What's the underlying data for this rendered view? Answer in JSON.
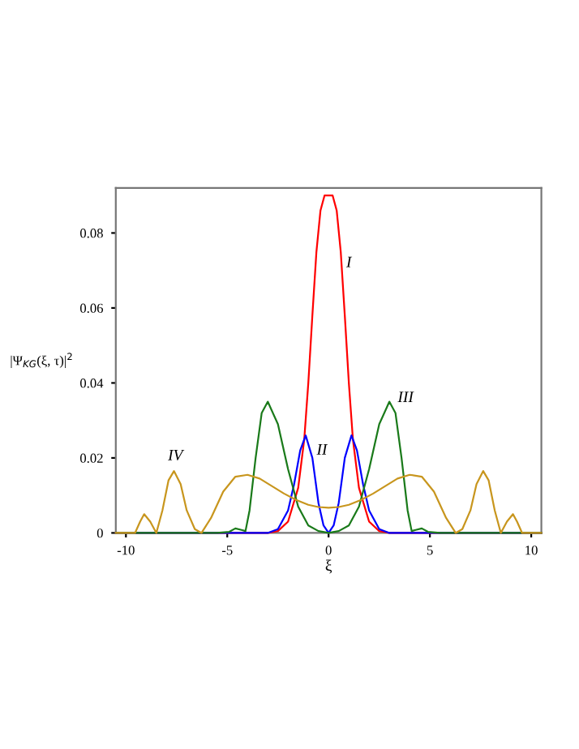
{
  "chart_data": {
    "type": "line",
    "xlabel": "ξ",
    "ylabel": "|Ψ$_{KG}$(ξ, τ)|$^{2}$",
    "xlim": [
      -10.5,
      10.5
    ],
    "ylim": [
      0,
      0.092
    ],
    "xticks": [
      -10,
      -5,
      0,
      5,
      10
    ],
    "yticks": [
      0,
      0.02,
      0.04,
      0.06,
      0.08
    ],
    "grid": false,
    "legend": false,
    "marker": "none",
    "line_style": "solid",
    "series": [
      {
        "color": "#ff0000",
        "x": [
          -10.5,
          -3,
          -2.5,
          -2,
          -1.5,
          -1.2,
          -1,
          -0.8,
          -0.6,
          -0.4,
          -0.2,
          0,
          0.2,
          0.4,
          0.6,
          0.8,
          1,
          1.2,
          1.5,
          2,
          2.5,
          3,
          10.5
        ],
        "values": [
          0,
          0,
          0.0005,
          0.003,
          0.012,
          0.025,
          0.04,
          0.058,
          0.075,
          0.086,
          0.09,
          0.09,
          0.09,
          0.086,
          0.075,
          0.058,
          0.04,
          0.025,
          0.012,
          0.003,
          0.0005,
          0,
          0
        ]
      },
      {
        "color": "#0000ff",
        "x": [
          -10.5,
          -3,
          -2.5,
          -2,
          -1.7,
          -1.4,
          -1.13,
          -0.8,
          -0.5,
          -0.25,
          0,
          0.25,
          0.5,
          0.8,
          1.13,
          1.4,
          1.7,
          2,
          2.5,
          3,
          10.5
        ],
        "values": [
          0,
          0,
          0.001,
          0.006,
          0.013,
          0.022,
          0.026,
          0.02,
          0.008,
          0.002,
          0,
          0.002,
          0.008,
          0.02,
          0.026,
          0.022,
          0.013,
          0.006,
          0.001,
          0,
          0
        ]
      },
      {
        "color": "#1a7a1a",
        "x": [
          -10.5,
          -5.5,
          -4.9,
          -4.6,
          -4.3,
          -4.1,
          -3.9,
          -3.6,
          -3.3,
          -3,
          -2.5,
          -2,
          -1.5,
          -1,
          -0.5,
          0,
          0.5,
          1,
          1.5,
          2,
          2.5,
          3,
          3.3,
          3.6,
          3.9,
          4.1,
          4.3,
          4.6,
          4.9,
          5.5,
          10.5
        ],
        "values": [
          0,
          0,
          0.0003,
          0.0012,
          0.0008,
          0.0005,
          0.006,
          0.02,
          0.032,
          0.035,
          0.029,
          0.017,
          0.007,
          0.002,
          0.0005,
          0,
          0.0005,
          0.002,
          0.007,
          0.017,
          0.029,
          0.035,
          0.032,
          0.02,
          0.006,
          0.0005,
          0.0008,
          0.0012,
          0.0003,
          0,
          0
        ]
      },
      {
        "color": "#c8961e",
        "x": [
          -10.5,
          -9.8,
          -9.55,
          -9.3,
          -9.1,
          -8.8,
          -8.5,
          -8.2,
          -7.9,
          -7.63,
          -7.3,
          -7,
          -6.6,
          -6.27,
          -5.8,
          -5.2,
          -4.6,
          -4,
          -3.4,
          -2.8,
          -2.2,
          -1.6,
          -1,
          -0.5,
          0,
          0.5,
          1,
          1.6,
          2.2,
          2.8,
          3.4,
          4,
          4.6,
          5.2,
          5.8,
          6.27,
          6.6,
          7,
          7.3,
          7.63,
          7.9,
          8.2,
          8.5,
          8.8,
          9.1,
          9.3,
          9.55,
          9.8,
          10.5
        ],
        "values": [
          0,
          0,
          0,
          0.003,
          0.005,
          0.003,
          0,
          0.006,
          0.014,
          0.0165,
          0.013,
          0.006,
          0.001,
          0,
          0.004,
          0.011,
          0.015,
          0.0155,
          0.0145,
          0.0125,
          0.0105,
          0.0088,
          0.0075,
          0.0069,
          0.0067,
          0.0069,
          0.0075,
          0.0088,
          0.0105,
          0.0125,
          0.0145,
          0.0155,
          0.015,
          0.011,
          0.004,
          0,
          0.001,
          0.006,
          0.013,
          0.0165,
          0.014,
          0.006,
          0,
          0.003,
          0.005,
          0.003,
          0,
          0,
          0
        ]
      }
    ],
    "annotations": [
      "I",
      "II",
      "III",
      "IV"
    ]
  }
}
